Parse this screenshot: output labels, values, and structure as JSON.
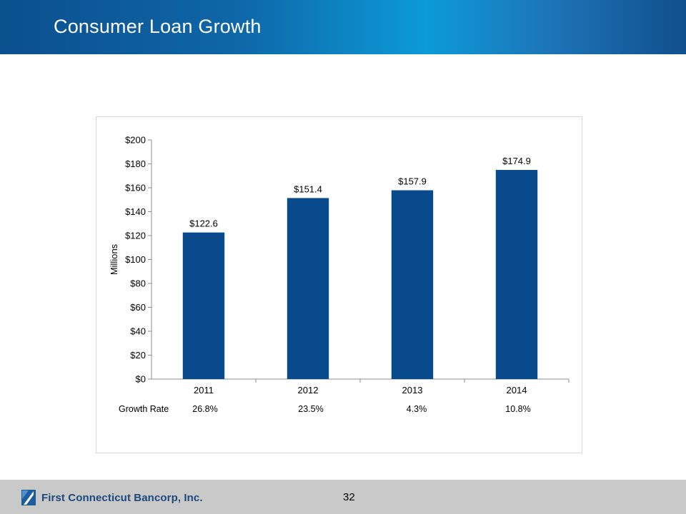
{
  "slide": {
    "title": "Consumer Loan Growth",
    "page_number": "32",
    "company": "First Connecticut Bancorp, Inc."
  },
  "colors": {
    "bar": "#084a8b",
    "header_dark": "#0b4f8e",
    "header_light": "#0c9ad8",
    "footer": "#c9c9c9"
  },
  "chart_data": {
    "type": "bar",
    "categories": [
      "2011",
      "2012",
      "2013",
      "2014"
    ],
    "values": [
      122.6,
      151.4,
      157.9,
      174.9
    ],
    "data_labels": [
      "$122.6",
      "$151.4",
      "$157.9",
      "$174.9"
    ],
    "ylabel": "Millions",
    "ylim": [
      0,
      200
    ],
    "yticks": [
      0,
      20,
      40,
      60,
      80,
      100,
      120,
      140,
      160,
      180,
      200
    ],
    "ytick_labels": [
      "$0",
      "$20",
      "$40",
      "$60",
      "$80",
      "$100",
      "$120",
      "$140",
      "$160",
      "$180",
      "$200"
    ],
    "grid": false,
    "legend": "none",
    "growth_rate": {
      "label": "Growth  Rate",
      "values": [
        "26.8%",
        "23.5%",
        "4.3%",
        "10.8%"
      ]
    }
  }
}
